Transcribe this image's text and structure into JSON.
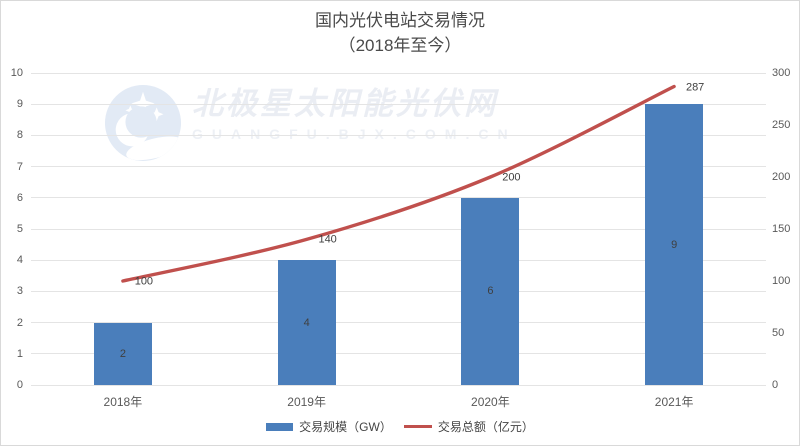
{
  "title": {
    "line1": "国内光伏电站交易情况",
    "line2": "（2018年至今）"
  },
  "watermark": {
    "text": "北极星太阳能光伏网",
    "subtext": "GUANGFU.BJX.COM.CN",
    "logo_icon": "polaris-star-moon-icon"
  },
  "chart_data": {
    "type": "combo",
    "title": "国内光伏电站交易情况（2018年至今）",
    "categories": [
      "2018年",
      "2019年",
      "2020年",
      "2021年"
    ],
    "series": [
      {
        "name": "交易规模（GW）",
        "type": "bar",
        "axis": "left",
        "color": "#4a7ebb",
        "values": [
          2,
          4,
          6,
          9
        ]
      },
      {
        "name": "交易总额（亿元）",
        "type": "line",
        "axis": "right",
        "color": "#c0504d",
        "values": [
          100,
          140,
          200,
          287
        ]
      }
    ],
    "left_axis": {
      "min": 0,
      "max": 10,
      "step": 1
    },
    "right_axis": {
      "min": 0,
      "max": 300,
      "step": 50
    },
    "grid": true,
    "data_labels": true,
    "legend_position": "bottom"
  },
  "colors": {
    "bar": "#4a7ebb",
    "line": "#c0504d",
    "grid": "#e4e4e4",
    "border": "#d9d9d9",
    "axis_text": "#595959",
    "title_text": "#4a4a4a",
    "label_text": "#3f3f3f",
    "watermark_logo": "#e2eaf5",
    "watermark_text": "#eaedf3",
    "watermark_sub": "#edf0f5"
  }
}
